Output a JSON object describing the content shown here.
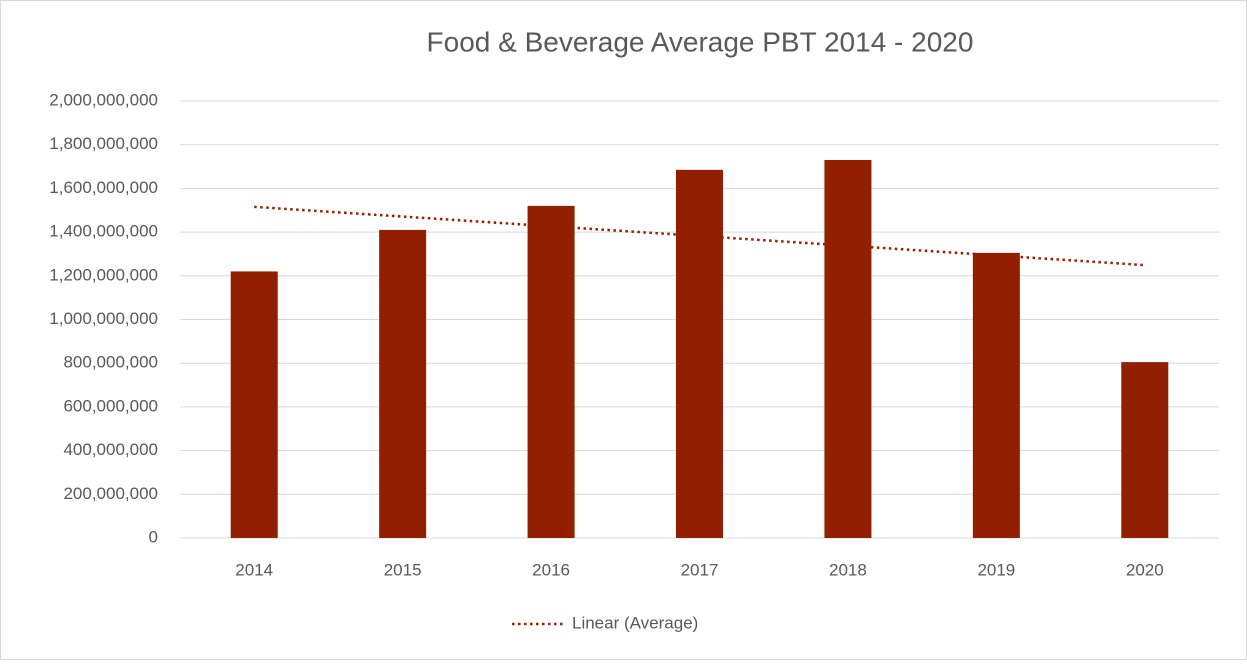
{
  "chart_data": {
    "type": "bar",
    "title": "Food & Beverage Average PBT 2014 - 2020",
    "categories": [
      "2014",
      "2015",
      "2016",
      "2017",
      "2018",
      "2019",
      "2020"
    ],
    "values": [
      1220000000,
      1410000000,
      1520000000,
      1685000000,
      1730000000,
      1305000000,
      805000000
    ],
    "color": "#922000",
    "ylim": [
      0,
      2000000000
    ],
    "yticks": [
      0,
      {
        "value": 200000000,
        "label": "200,000,000"
      },
      {
        "value": 400000000,
        "label": "400,000,000"
      },
      {
        "value": 600000000,
        "label": "600,000,000"
      },
      {
        "value": 800000000,
        "label": "800,000,000"
      },
      {
        "value": 1000000000,
        "label": "1,000,000,000"
      },
      {
        "value": 1200000000,
        "label": "1,200,000,000"
      },
      {
        "value": 1400000000,
        "label": "1,400,000,000"
      },
      {
        "value": 1600000000,
        "label": "1,600,000,000"
      },
      {
        "value": 1800000000,
        "label": "1,800,000,000"
      },
      {
        "value": 2000000000,
        "label": "2,000,000,000"
      }
    ],
    "grid": true,
    "trendline": {
      "label": "Linear (Average)",
      "color": "#922000"
    },
    "legend": "bottom"
  }
}
